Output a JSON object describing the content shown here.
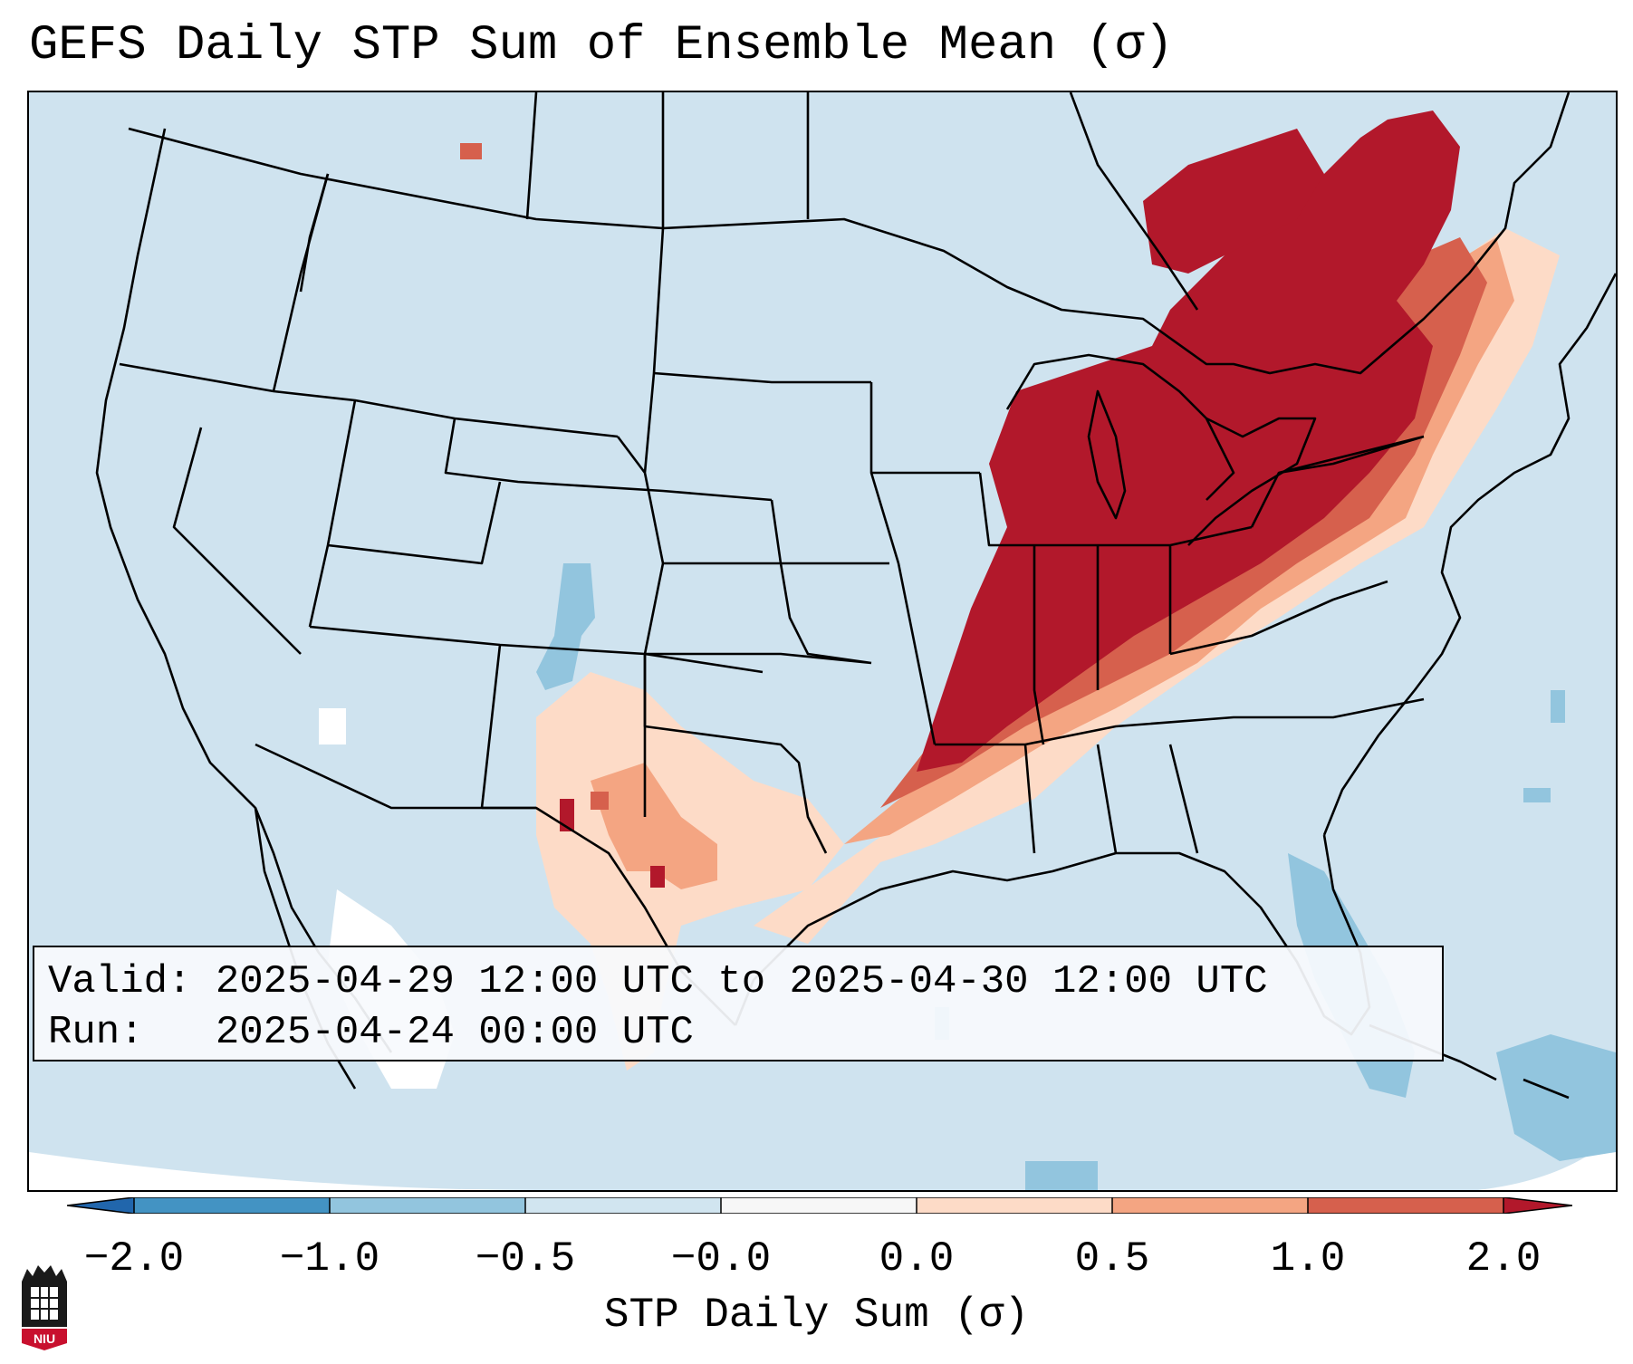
{
  "title": "GEFS Daily STP Sum of Ensemble Mean (σ)",
  "info": {
    "valid_label": "Valid:",
    "valid_value": "2025-04-29 12:00 UTC to 2025-04-30 12:00 UTC",
    "run_label": "Run:",
    "run_value": "2025-04-24 00:00 UTC"
  },
  "colorbar": {
    "label": "STP Daily Sum (σ)",
    "ticks": [
      "−2.0",
      "−1.0",
      "−0.5",
      "−0.0",
      "0.0",
      "0.5",
      "1.0",
      "2.0"
    ],
    "colors": {
      "under": "#2166ac",
      "lt_neg1": "#4393c3",
      "neg1_to_neg05": "#92c5de",
      "neg05_to_0": "#d1e5f0",
      "zero": "#f7f7f7",
      "zero_to_05": "#fddbc7",
      "p05_to_1": "#f4a582",
      "p1_to_2": "#d6604d",
      "over": "#b2182b"
    }
  },
  "logo": {
    "text": "NIU"
  },
  "map_colors": {
    "background": "#cfe3ef",
    "high": "#b2182b",
    "elevated": "#d6604d",
    "moderate": "#f4a582",
    "light": "#fddbc7",
    "below": "#92c5de",
    "neutral": "#ffffff"
  }
}
